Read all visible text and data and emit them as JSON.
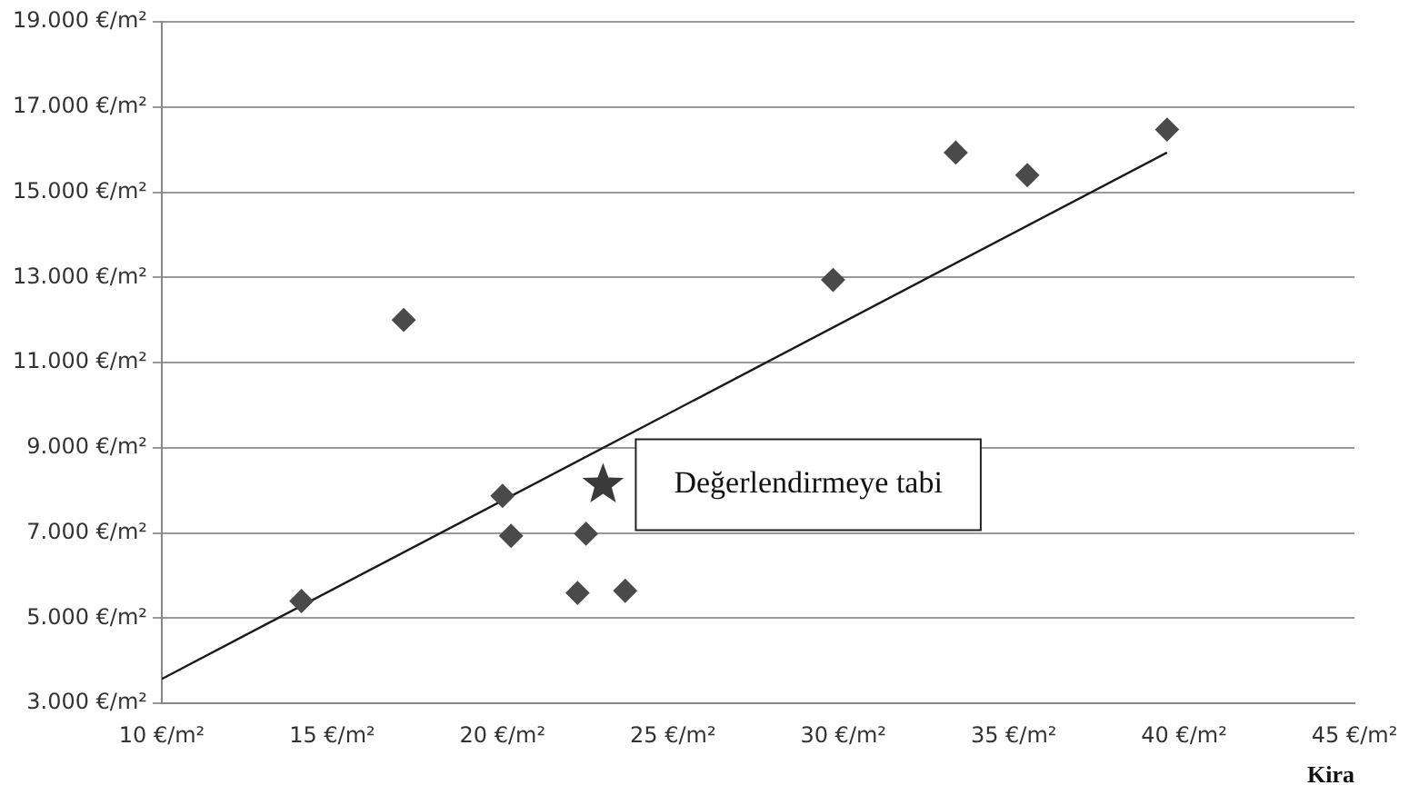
{
  "chart_data": {
    "type": "scatter",
    "xlabel": "Kira",
    "xlim": [
      10,
      45
    ],
    "xticks": [
      {
        "value": 10,
        "label": "10 €/m²"
      },
      {
        "value": 15,
        "label": "15 €/m²"
      },
      {
        "value": 20,
        "label": "20 €/m²"
      },
      {
        "value": 25,
        "label": "25 €/m²"
      },
      {
        "value": 30,
        "label": "30 €/m²"
      },
      {
        "value": 35,
        "label": "35 €/m²"
      },
      {
        "value": 40,
        "label": "40 €/m²"
      },
      {
        "value": 45,
        "label": "45 €/m²"
      }
    ],
    "ylim": [
      3000,
      19000
    ],
    "yticks": [
      {
        "value": 3000,
        "label": "3.000 €/m²"
      },
      {
        "value": 5000,
        "label": "5.000 €/m²"
      },
      {
        "value": 7000,
        "label": "7.000 €/m²"
      },
      {
        "value": 9000,
        "label": "9.000 €/m²"
      },
      {
        "value": 11000,
        "label": "11.000 €/m²"
      },
      {
        "value": 13000,
        "label": "13.000 €/m²"
      },
      {
        "value": 15000,
        "label": "15.000 €/m²"
      },
      {
        "value": 17000,
        "label": "17.000 €/m²"
      },
      {
        "value": 19000,
        "label": "19.000 €/m²"
      }
    ],
    "grid": "y",
    "legend": false,
    "series": [
      {
        "marker": "diamond",
        "color": "#4a4a4a",
        "x": [
          14.1,
          17.1,
          20.0,
          20.25,
          22.45,
          22.2,
          23.6,
          29.7,
          33.3,
          35.4,
          39.5
        ],
        "values": [
          5400,
          12000,
          7870,
          6930,
          6980,
          5590,
          5640,
          12940,
          15930,
          15400,
          16470
        ]
      },
      {
        "marker": "star",
        "color": "#3a3a3a",
        "x": [
          22.95
        ],
        "values": [
          8130
        ]
      },
      {
        "type": "line",
        "marker": "none",
        "color": "#1a1a1a",
        "x": [
          10,
          39.5
        ],
        "values": [
          3570,
          15930
        ]
      }
    ],
    "annotations": [
      {
        "text": "Değerlendirmeye tabi",
        "x": 22.95,
        "y": 8130
      }
    ]
  }
}
